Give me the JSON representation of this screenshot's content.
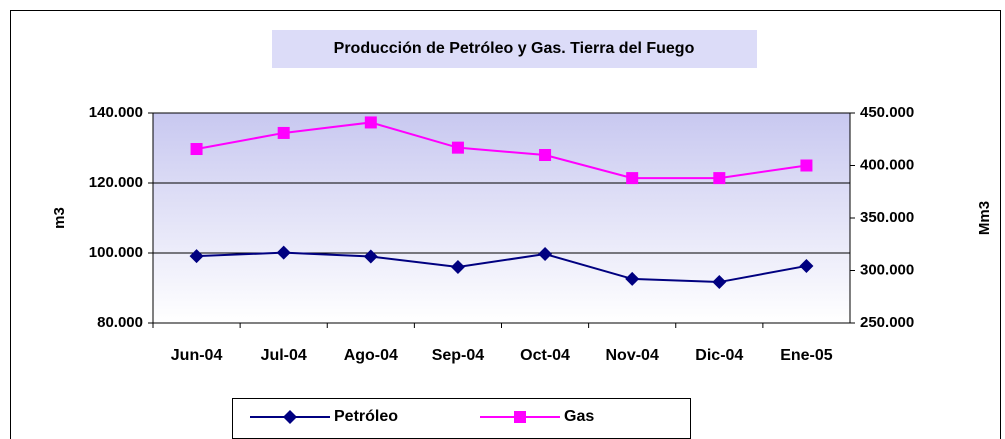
{
  "chart_data": {
    "type": "line",
    "title": "Producción de Petróleo y Gas. Tierra del Fuego",
    "y_label": "m3",
    "y2_label": "Mm3",
    "categories": [
      "Jun-04",
      "Jul-04",
      "Ago-04",
      "Sep-04",
      "Oct-04",
      "Nov-04",
      "Dic-04",
      "Ene-05"
    ],
    "series": [
      {
        "name": "Petróleo",
        "color": "#000080",
        "marker": "diamond",
        "values": [
          99100,
          100100,
          99000,
          96000,
          99700,
          92600,
          91700,
          96300
        ]
      },
      {
        "name": "Gas",
        "color": "#ff00ff",
        "marker": "square",
        "axis": "y2",
        "values": [
          415700,
          431000,
          441000,
          417000,
          410000,
          388000,
          388000,
          400000
        ]
      }
    ],
    "ylim": [
      80000,
      140000
    ],
    "yticks": [
      {
        "value": 80000,
        "label": "80.000"
      },
      {
        "value": 100000,
        "label": "100.000"
      },
      {
        "value": 120000,
        "label": "120.000"
      },
      {
        "value": 140000,
        "label": "140.000"
      }
    ],
    "y2lim": [
      250000,
      450000
    ],
    "y2ticks": [
      {
        "value": 250000,
        "label": "250.000"
      },
      {
        "value": 300000,
        "label": "300.000"
      },
      {
        "value": 350000,
        "label": "350.000"
      },
      {
        "value": 400000,
        "label": "400.000"
      },
      {
        "value": 450000,
        "label": "450.000"
      }
    ],
    "grid": true,
    "legend": "bottom"
  }
}
